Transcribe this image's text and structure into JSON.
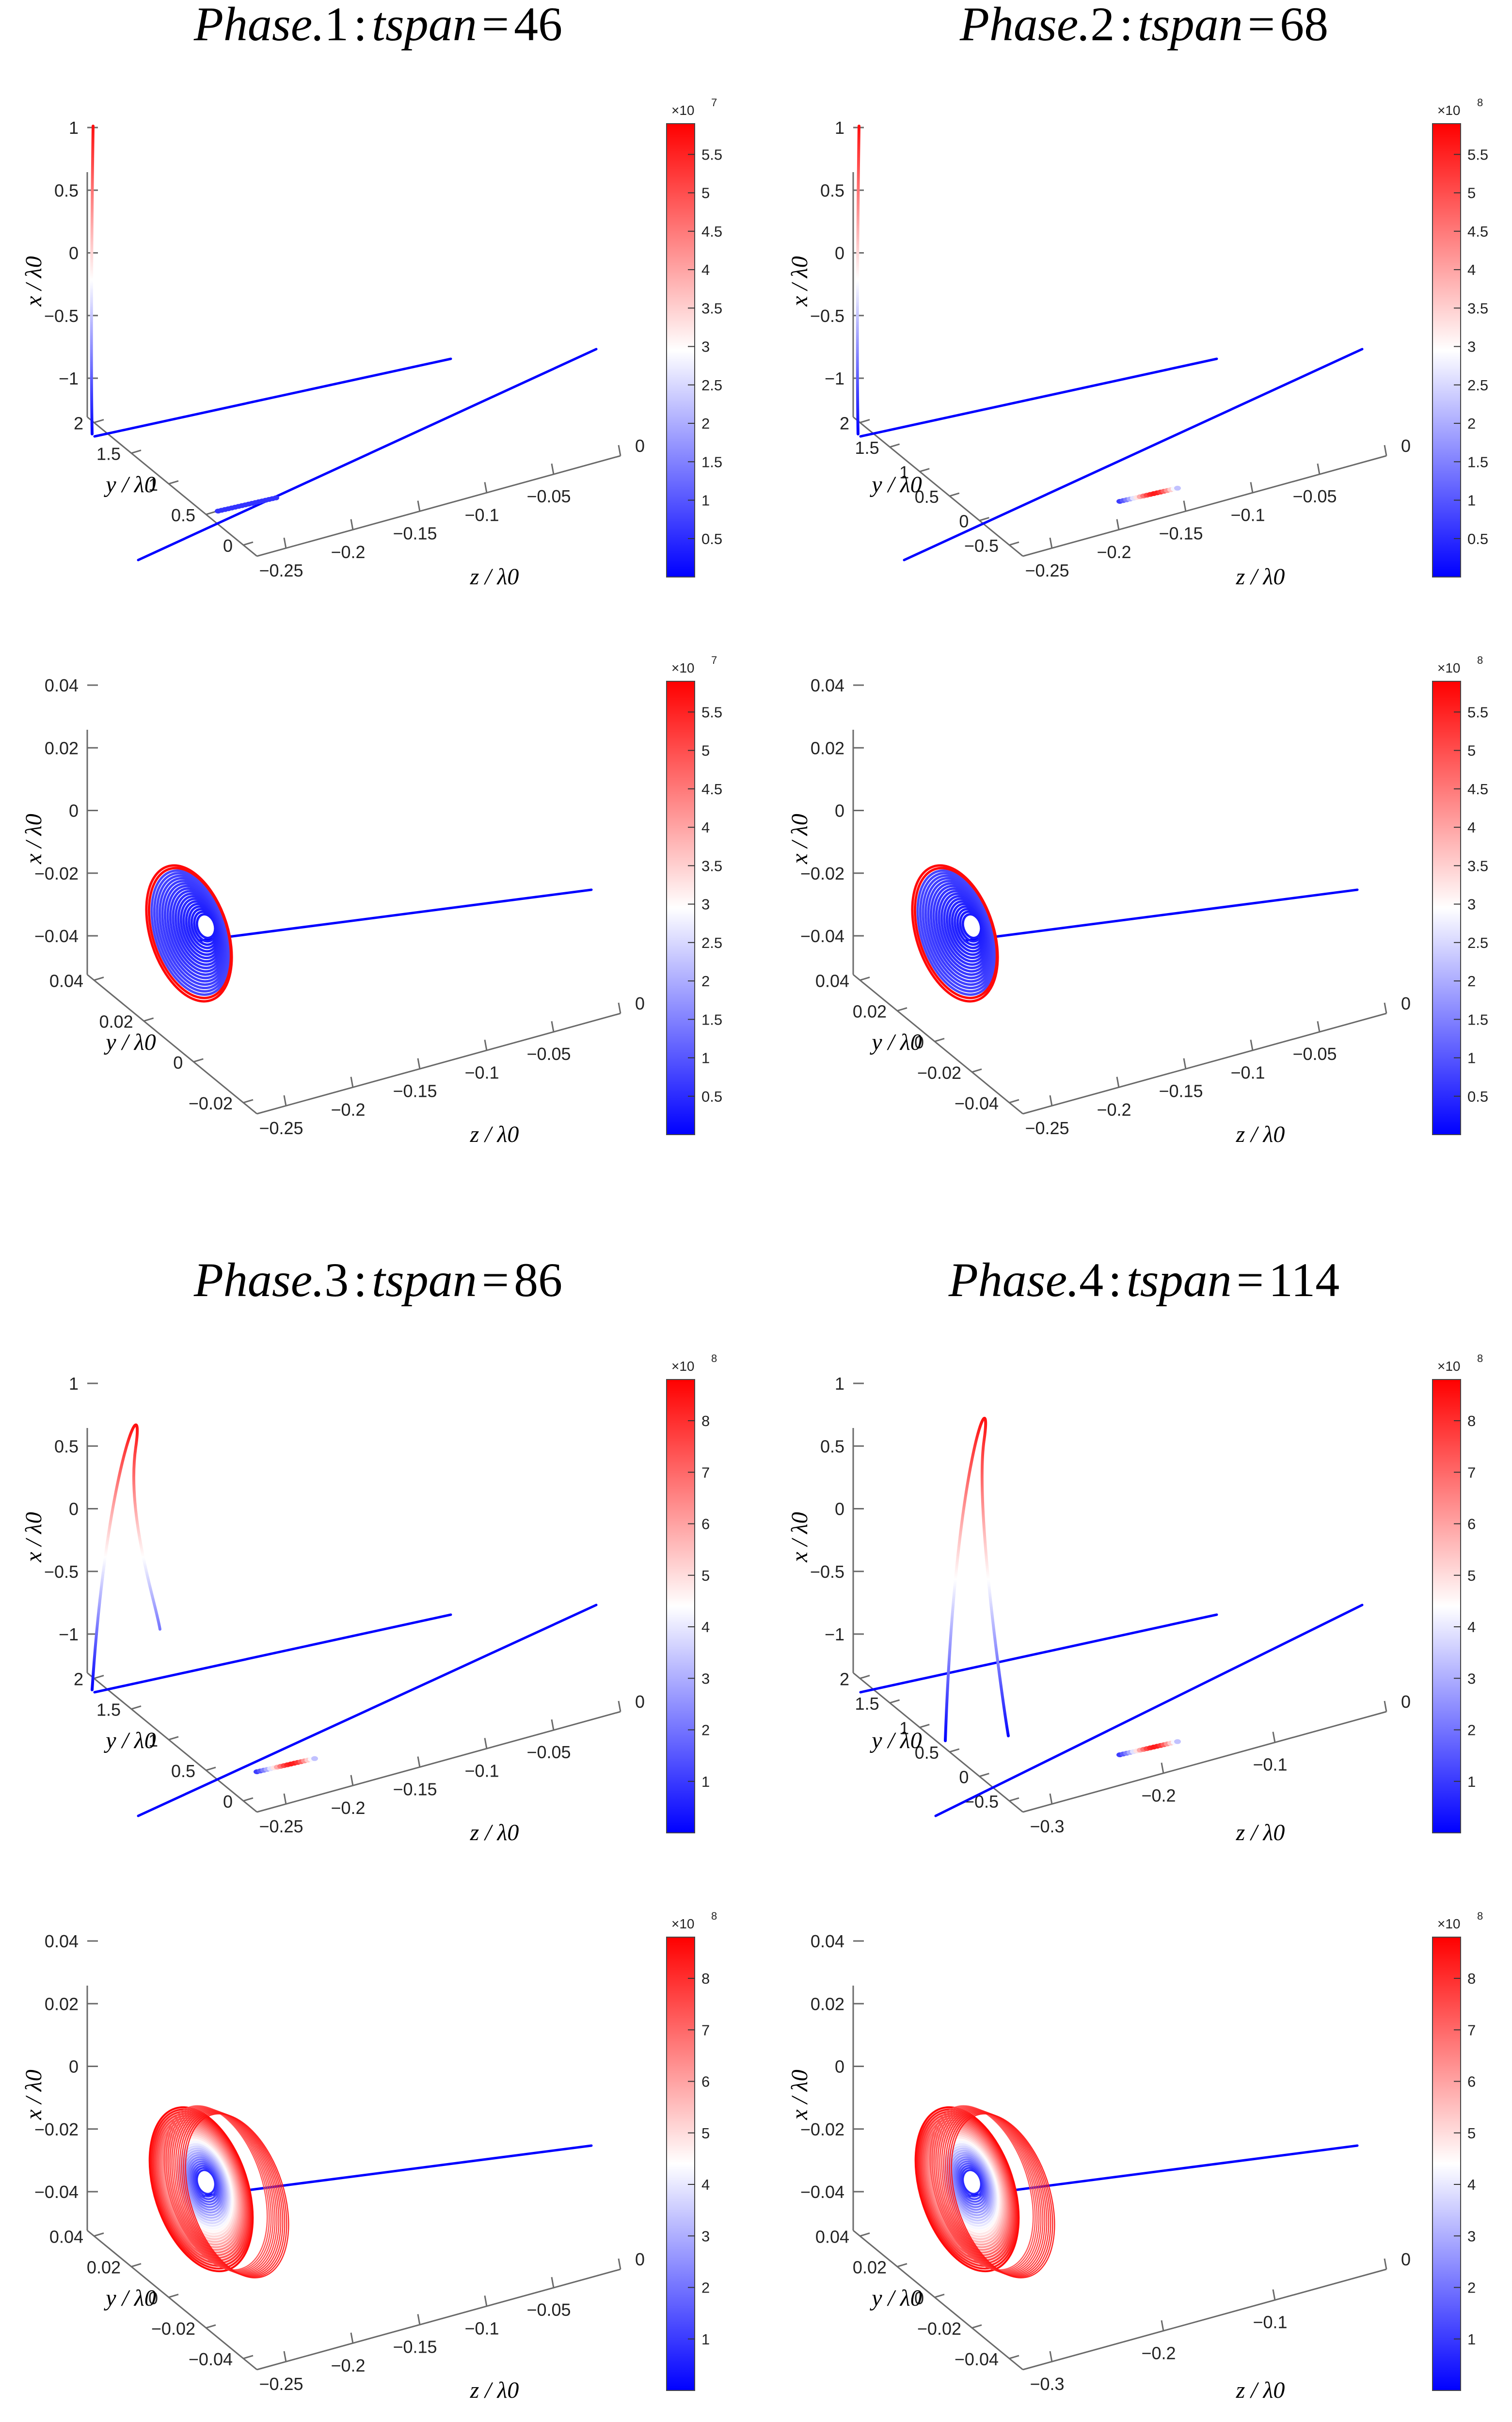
{
  "figure": {
    "colors": {
      "low": "#0000ff",
      "mid": "#ffffff",
      "high": "#ff0000",
      "axis": "#6a6a6a",
      "text": "#222222"
    },
    "phases": [
      {
        "id": 1,
        "title": {
          "word": "Phase.",
          "num": "1",
          "sep": ":",
          "var": "tspan",
          "eq": "=",
          "value": "46"
        },
        "colorbar": {
          "exponent_base": "×10",
          "exponent_power": "7",
          "ticks": [
            "5.5",
            "5",
            "4.5",
            "4",
            "3.5",
            "3",
            "2.5",
            "2",
            "1.5",
            "1",
            "0.5"
          ],
          "max": 5.9
        },
        "panels": [
          {
            "kind": "overview",
            "x_label": "x / λ0",
            "y_label": "y / λ0",
            "z_label": "z / λ0",
            "x_ticks": [
              "1",
              "0.5",
              "0",
              "−0.5",
              "−1"
            ],
            "y_ticks": [
              "2",
              "1.5",
              "1",
              "0.5",
              "0"
            ],
            "z_ticks": [
              "−0.25",
              "−0.2",
              "−0.15",
              "−0.1",
              "−0.05",
              "0"
            ]
          },
          {
            "kind": "zoom",
            "x_label": "x / λ0",
            "y_label": "y / λ0",
            "z_label": "z / λ0",
            "x_ticks": [
              "0.04",
              "0.02",
              "0",
              "−0.02",
              "−0.04"
            ],
            "y_ticks": [
              "0.04",
              "0.02",
              "0",
              "−0.02"
            ],
            "z_ticks": [
              "−0.25",
              "−0.2",
              "−0.15",
              "−0.1",
              "−0.05",
              "0"
            ]
          }
        ]
      },
      {
        "id": 2,
        "title": {
          "word": "Phase.",
          "num": "2",
          "sep": ":",
          "var": "tspan",
          "eq": "=",
          "value": "68"
        },
        "colorbar": {
          "exponent_base": "×10",
          "exponent_power": "8",
          "ticks": [
            "5.5",
            "5",
            "4.5",
            "4",
            "3.5",
            "3",
            "2.5",
            "2",
            "1.5",
            "1",
            "0.5"
          ],
          "max": 5.9
        },
        "panels": [
          {
            "kind": "overview",
            "x_label": "x / λ0",
            "y_label": "y / λ0",
            "z_label": "z / λ0",
            "x_ticks": [
              "1",
              "0.5",
              "0",
              "−0.5",
              "−1"
            ],
            "y_ticks": [
              "2",
              "1.5",
              "1",
              "0.5",
              "0",
              "−0.5"
            ],
            "z_ticks": [
              "−0.25",
              "−0.2",
              "−0.15",
              "−0.1",
              "−0.05",
              "0"
            ]
          },
          {
            "kind": "zoom",
            "x_label": "x / λ0",
            "y_label": "y / λ0",
            "z_label": "z / λ0",
            "x_ticks": [
              "0.04",
              "0.02",
              "0",
              "−0.02",
              "−0.04"
            ],
            "y_ticks": [
              "0.04",
              "0.02",
              "0",
              "−0.02",
              "−0.04"
            ],
            "z_ticks": [
              "−0.25",
              "−0.2",
              "−0.15",
              "−0.1",
              "−0.05",
              "0"
            ]
          }
        ]
      },
      {
        "id": 3,
        "title": {
          "word": "Phase.",
          "num": "3",
          "sep": ":",
          "var": "tspan",
          "eq": "=",
          "value": "86"
        },
        "colorbar": {
          "exponent_base": "×10",
          "exponent_power": "8",
          "ticks": [
            "8",
            "7",
            "6",
            "5",
            "4",
            "3",
            "2",
            "1"
          ],
          "max": 8.8
        },
        "panels": [
          {
            "kind": "overview",
            "x_label": "x / λ0",
            "y_label": "y / λ0",
            "z_label": "z / λ0",
            "x_ticks": [
              "1",
              "0.5",
              "0",
              "−0.5",
              "−1"
            ],
            "y_ticks": [
              "2",
              "1.5",
              "1",
              "0.5",
              "0"
            ],
            "z_ticks": [
              "−0.25",
              "−0.2",
              "−0.15",
              "−0.1",
              "−0.05",
              "0"
            ]
          },
          {
            "kind": "zoom",
            "x_label": "x / λ0",
            "y_label": "y / λ0",
            "z_label": "z / λ0",
            "x_ticks": [
              "0.04",
              "0.02",
              "0",
              "−0.02",
              "−0.04"
            ],
            "y_ticks": [
              "0.04",
              "0.02",
              "0",
              "−0.02",
              "−0.04"
            ],
            "z_ticks": [
              "−0.25",
              "−0.2",
              "−0.15",
              "−0.1",
              "−0.05",
              "0"
            ]
          }
        ]
      },
      {
        "id": 4,
        "title": {
          "word": "Phase.",
          "num": "4",
          "sep": ":",
          "var": "tspan",
          "eq": "=",
          "value": "114"
        },
        "colorbar": {
          "exponent_base": "×10",
          "exponent_power": "8",
          "ticks": [
            "8",
            "7",
            "6",
            "5",
            "4",
            "3",
            "2",
            "1"
          ],
          "max": 8.8
        },
        "panels": [
          {
            "kind": "overview",
            "x_label": "x / λ0",
            "y_label": "y / λ0",
            "z_label": "z / λ0",
            "x_ticks": [
              "1",
              "0.5",
              "0",
              "−0.5",
              "−1"
            ],
            "y_ticks": [
              "2",
              "1.5",
              "1",
              "0.5",
              "0",
              "−0.5"
            ],
            "z_ticks": [
              "−0.3",
              "−0.2",
              "−0.1",
              "0"
            ]
          },
          {
            "kind": "zoom",
            "x_label": "x / λ0",
            "y_label": "y / λ0",
            "z_label": "z / λ0",
            "x_ticks": [
              "0.04",
              "0.02",
              "0",
              "−0.02",
              "−0.04"
            ],
            "y_ticks": [
              "0.04",
              "0.02",
              "0",
              "−0.02",
              "−0.04"
            ],
            "z_ticks": [
              "−0.3",
              "−0.2",
              "−0.1",
              "0"
            ]
          }
        ]
      }
    ]
  },
  "chart_data": [
    {
      "type": "line",
      "title": "Phase.1 : tspan = 46 (overview)",
      "xlabel": "z / λ0",
      "ylabel": "y / λ0",
      "zlabel": "x / λ0",
      "xlim": [
        -0.25,
        0
      ],
      "ylim": [
        0,
        2
      ],
      "zlim": [
        -1,
        1
      ],
      "colorbar": {
        "range": [
          0,
          59000000.0
        ],
        "colormap": "blue-white-red"
      }
    },
    {
      "type": "line",
      "title": "Phase.1 : tspan = 46 (zoom)",
      "xlabel": "z / λ0",
      "ylabel": "y / λ0",
      "zlabel": "x / λ0",
      "xlim": [
        -0.25,
        0
      ],
      "ylim": [
        -0.02,
        0.04
      ],
      "zlim": [
        -0.04,
        0.04
      ],
      "colorbar": {
        "range": [
          0,
          59000000.0
        ],
        "colormap": "blue-white-red"
      }
    },
    {
      "type": "line",
      "title": "Phase.2 : tspan = 68 (overview)",
      "xlabel": "z / λ0",
      "ylabel": "y / λ0",
      "zlabel": "x / λ0",
      "xlim": [
        -0.25,
        0
      ],
      "ylim": [
        -0.5,
        2
      ],
      "zlim": [
        -1,
        1
      ],
      "colorbar": {
        "range": [
          0,
          590000000.0
        ],
        "colormap": "blue-white-red"
      }
    },
    {
      "type": "line",
      "title": "Phase.2 : tspan = 68 (zoom)",
      "xlabel": "z / λ0",
      "ylabel": "y / λ0",
      "zlabel": "x / λ0",
      "xlim": [
        -0.25,
        0
      ],
      "ylim": [
        -0.04,
        0.04
      ],
      "zlim": [
        -0.04,
        0.04
      ],
      "colorbar": {
        "range": [
          0,
          590000000.0
        ],
        "colormap": "blue-white-red"
      }
    },
    {
      "type": "line",
      "title": "Phase.3 : tspan = 86 (overview)",
      "xlabel": "z / λ0",
      "ylabel": "y / λ0",
      "zlabel": "x / λ0",
      "xlim": [
        -0.25,
        0
      ],
      "ylim": [
        0,
        2
      ],
      "zlim": [
        -1,
        1
      ],
      "colorbar": {
        "range": [
          0,
          880000000.0
        ],
        "colormap": "blue-white-red"
      }
    },
    {
      "type": "line",
      "title": "Phase.3 : tspan = 86 (zoom)",
      "xlabel": "z / λ0",
      "ylabel": "y / λ0",
      "zlabel": "x / λ0",
      "xlim": [
        -0.25,
        0
      ],
      "ylim": [
        -0.04,
        0.04
      ],
      "zlim": [
        -0.04,
        0.04
      ],
      "colorbar": {
        "range": [
          0,
          880000000.0
        ],
        "colormap": "blue-white-red"
      }
    },
    {
      "type": "line",
      "title": "Phase.4 : tspan = 114 (overview)",
      "xlabel": "z / λ0",
      "ylabel": "y / λ0",
      "zlabel": "x / λ0",
      "xlim": [
        -0.3,
        0
      ],
      "ylim": [
        -0.5,
        2
      ],
      "zlim": [
        -1,
        1
      ],
      "colorbar": {
        "range": [
          0,
          880000000.0
        ],
        "colormap": "blue-white-red"
      }
    },
    {
      "type": "line",
      "title": "Phase.4 : tspan = 114 (zoom)",
      "xlabel": "z / λ0",
      "ylabel": "y / λ0",
      "zlabel": "x / λ0",
      "xlim": [
        -0.3,
        0
      ],
      "ylim": [
        -0.04,
        0.04
      ],
      "zlim": [
        -0.04,
        0.04
      ],
      "colorbar": {
        "range": [
          0,
          880000000.0
        ],
        "colormap": "blue-white-red"
      }
    }
  ]
}
